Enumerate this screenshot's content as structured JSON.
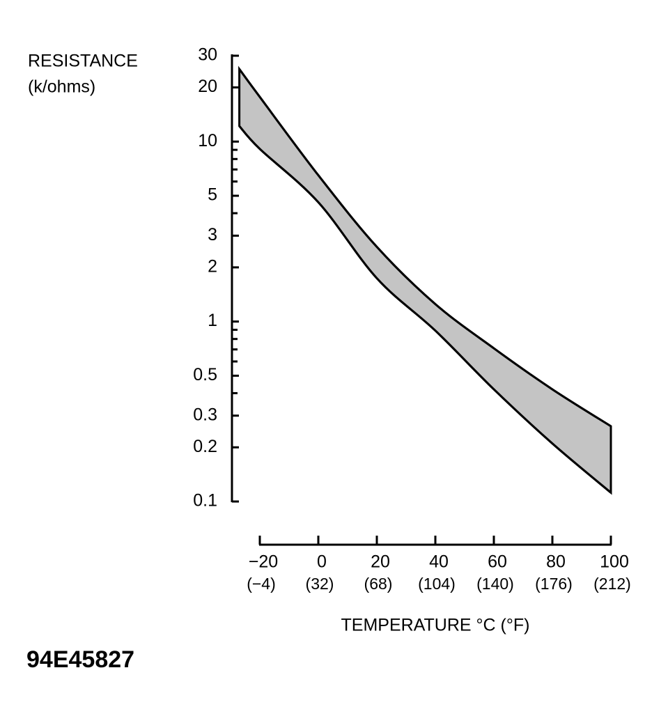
{
  "chart_data": {
    "type": "band",
    "ylabel": [
      "RESISTANCE",
      "(k/ohms)"
    ],
    "xlabel": "TEMPERATURE °C (°F)",
    "x": [
      -27,
      -20,
      0,
      20,
      40,
      60,
      80,
      100
    ],
    "series": [
      {
        "values": [
          25.3,
          17.7,
          6.5,
          2.6,
          1.25,
          0.71,
          0.42,
          0.262
        ]
      },
      {
        "values": [
          12.2,
          9.1,
          4.6,
          1.74,
          0.89,
          0.42,
          0.21,
          0.112
        ]
      }
    ],
    "color": "#c4c4c4",
    "yscale": "log",
    "ylim": [
      0.1,
      30
    ],
    "yticks": [
      30,
      20,
      10,
      5,
      3,
      2,
      1,
      0.5,
      0.3,
      0.2,
      0.1
    ],
    "yminorticks": [
      9,
      8,
      7,
      6,
      4,
      0.9,
      0.8,
      0.7,
      0.6,
      0.4
    ],
    "xlim": [
      -20,
      100
    ],
    "xticks": [
      {
        "value": -20,
        "label": "−20"
      },
      0,
      20,
      40,
      60,
      80,
      100
    ],
    "xtick_sublabels": [
      "(−4)",
      "(32)",
      "(68)",
      "(104)",
      "(140)",
      "(176)",
      "(212)"
    ]
  },
  "figure_id": "94E45827"
}
